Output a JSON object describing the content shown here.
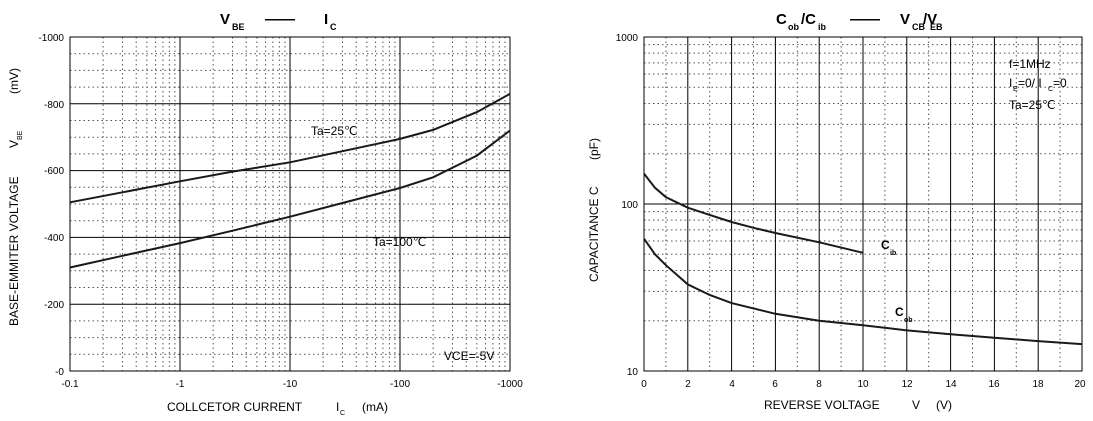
{
  "chart_data": [
    {
      "type": "line",
      "title": {
        "main": "V",
        "main_sub": "BE",
        "dash": "——",
        "second": "I",
        "second_sub": "C"
      },
      "xlabel": {
        "text": "COLLCETOR CURRENT",
        "symbol": "I",
        "symbol_sub": "C",
        "unit": "(mA)"
      },
      "ylabel": {
        "text": "BASE-EMMITER VOLTAGE",
        "symbol": "V",
        "symbol_sub": "BE",
        "unit": "(mV)"
      },
      "x_scale": "log",
      "xlim": [
        -0.1,
        -1000
      ],
      "ylim": [
        0,
        -1000
      ],
      "x_ticks": [
        "-0.1",
        "-1",
        "-10",
        "-100",
        "-1000"
      ],
      "y_ticks": [
        "-1000",
        "-800",
        "-600",
        "-400",
        "-200",
        "-0"
      ],
      "grid": true,
      "annotations": {
        "condition": "VCE=-5V"
      },
      "series": [
        {
          "name": "Ta=25℃",
          "x": [
            -0.1,
            -0.3,
            -1,
            -3,
            -10,
            -30,
            -100,
            -200,
            -500,
            -1000
          ],
          "y": [
            -505,
            -535,
            -568,
            -597,
            -625,
            -658,
            -695,
            -722,
            -775,
            -830
          ]
        },
        {
          "name": "Ta=100℃",
          "x": [
            -0.1,
            -0.3,
            -1,
            -3,
            -10,
            -30,
            -100,
            -200,
            -500,
            -1000
          ],
          "y": [
            -310,
            -345,
            -383,
            -420,
            -462,
            -503,
            -548,
            -580,
            -645,
            -720
          ]
        }
      ]
    },
    {
      "type": "line",
      "title": {
        "main": "C",
        "main_sub": "ob",
        "mid": "/C",
        "mid_sub": "ib",
        "dash": "——",
        "second": "V",
        "second_sub": "CB",
        "third": "/V",
        "third_sub": "EB"
      },
      "xlabel": {
        "text": "REVERSE VOLTAGE",
        "symbol": "V",
        "unit": "(V)"
      },
      "ylabel": {
        "text": "CAPACITANCE C",
        "unit": "(pF)"
      },
      "y_scale": "log",
      "xlim": [
        0,
        20
      ],
      "ylim": [
        10,
        1000
      ],
      "x_ticks": [
        "0",
        "2",
        "4",
        "6",
        "8",
        "10",
        "12",
        "14",
        "16",
        "18",
        "20"
      ],
      "y_ticks": [
        "1000",
        "100",
        "10"
      ],
      "grid": true,
      "annotations": {
        "freq": "f=1MHz",
        "cond_main": "I",
        "cond_sub1": "E",
        "cond_mid": "=0/ I",
        "cond_sub2": "C",
        "cond_end": "=0",
        "temp": "Ta=25℃"
      },
      "series": [
        {
          "name": "C",
          "name_sub": "ib",
          "x": [
            0,
            0.5,
            1,
            2,
            3,
            4,
            5,
            6,
            8,
            10
          ],
          "y": [
            152,
            125,
            110,
            95,
            86,
            78,
            72,
            67,
            59,
            51
          ]
        },
        {
          "name": "C",
          "name_sub": "ob",
          "x": [
            0,
            0.5,
            1,
            2,
            3,
            4,
            6,
            8,
            10,
            12,
            14,
            16,
            18,
            20
          ],
          "y": [
            62,
            50,
            43,
            33,
            28.5,
            25.5,
            22,
            20,
            18.8,
            17.5,
            16.6,
            15.8,
            15.1,
            14.5
          ]
        }
      ]
    }
  ]
}
